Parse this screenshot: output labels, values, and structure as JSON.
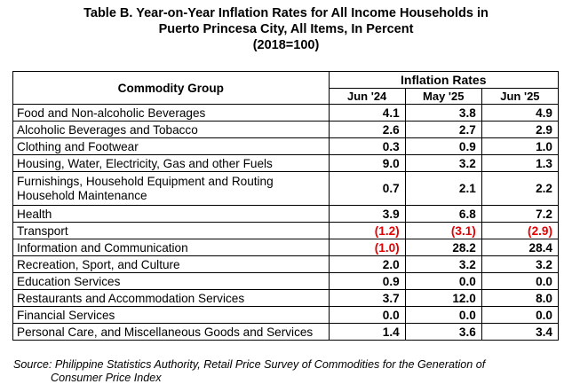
{
  "title": {
    "line1": "Table B. Year-on-Year Inflation Rates for All Income Households in",
    "line2": "Puerto Princesa City, All Items, In Percent",
    "line3": "(2018=100)"
  },
  "table": {
    "group_header": "Commodity Group",
    "rates_header": "Inflation Rates",
    "periods": [
      "Jun '24",
      "May '25",
      "Jun '25"
    ],
    "rows": [
      {
        "name": "Food and Non-alcoholic Beverages",
        "values": [
          "4.1",
          "3.8",
          "4.9"
        ]
      },
      {
        "name": "Alcoholic Beverages and Tobacco",
        "values": [
          "2.6",
          "2.7",
          "2.9"
        ]
      },
      {
        "name": "Clothing and Footwear",
        "values": [
          "0.3",
          "0.9",
          "1.0"
        ]
      },
      {
        "name": "Housing, Water, Electricity, Gas and other Fuels",
        "values": [
          "9.0",
          "3.2",
          "1.3"
        ]
      },
      {
        "name": "Furnishings, Household Equipment and Routing Household Maintenance",
        "values": [
          "0.7",
          "2.1",
          "2.2"
        ]
      },
      {
        "name": "Health",
        "values": [
          "3.9",
          "6.8",
          "7.2"
        ]
      },
      {
        "name": "Transport",
        "values": [
          "(1.2)",
          "(3.1)",
          "(2.9)"
        ]
      },
      {
        "name": "Information and Communication",
        "values": [
          "(1.0)",
          "28.2",
          "28.4"
        ]
      },
      {
        "name": "Recreation, Sport, and Culture",
        "values": [
          "2.0",
          "3.2",
          "3.2"
        ]
      },
      {
        "name": "Education Services",
        "values": [
          "0.9",
          "0.0",
          "0.0"
        ]
      },
      {
        "name": "Restaurants and Accommodation Services",
        "values": [
          "3.7",
          "12.0",
          "8.0"
        ]
      },
      {
        "name": "Financial Services",
        "values": [
          "0.0",
          "0.0",
          "0.0"
        ]
      },
      {
        "name": "Personal Care, and Miscellaneous Goods and Services",
        "values": [
          "1.4",
          "3.6",
          "3.4"
        ]
      }
    ]
  },
  "source": {
    "line1": "Source: Philippine Statistics Authority, Retail Price Survey of Commodities for the Generation of",
    "line2": "Consumer Price Index"
  },
  "colors": {
    "negative": "#e30000"
  }
}
